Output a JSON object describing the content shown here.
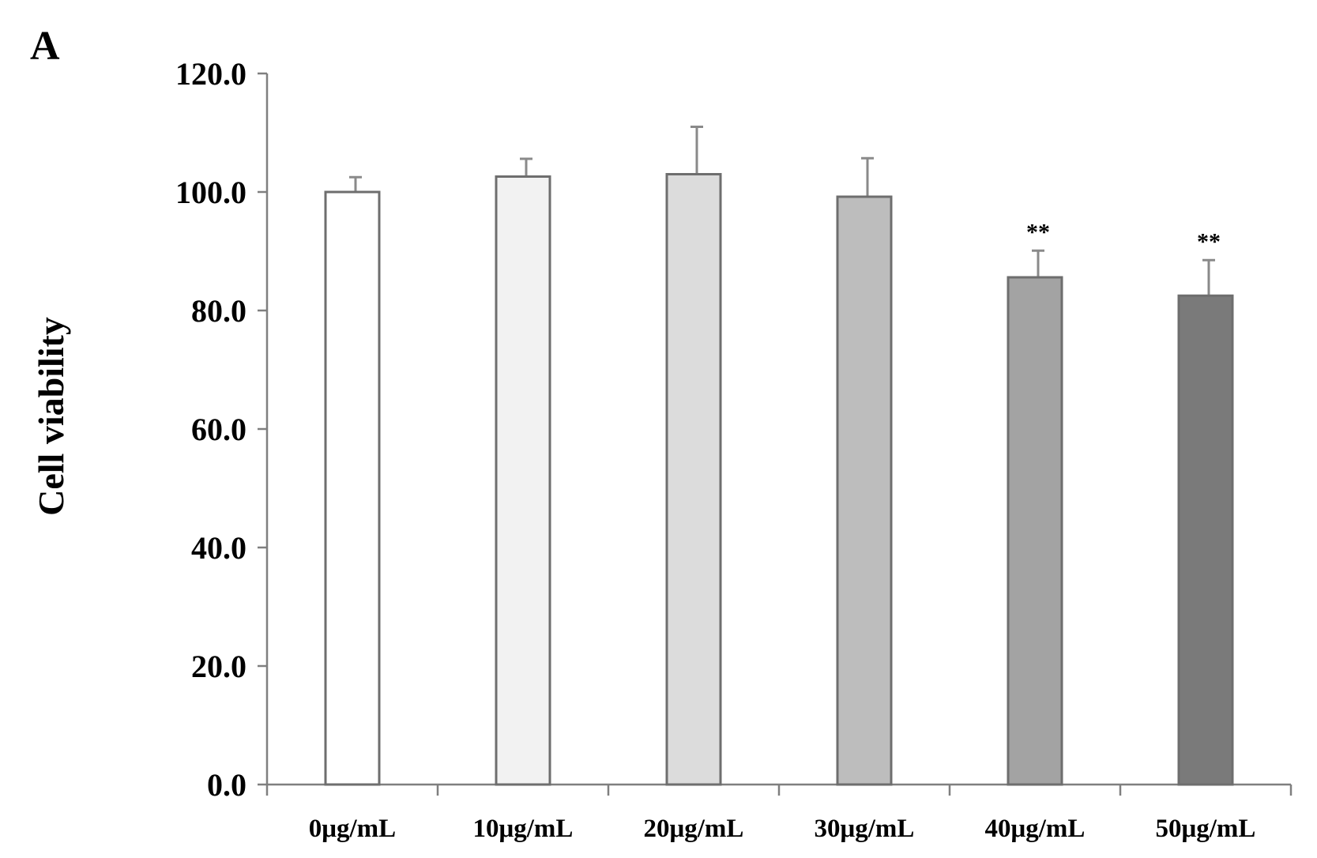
{
  "panel_label": "A",
  "chart_data": {
    "type": "bar",
    "title": "",
    "xlabel": "",
    "ylabel": "Cell viability",
    "ylim": [
      0,
      120
    ],
    "y_ticks": [
      "0.0",
      "20.0",
      "40.0",
      "60.0",
      "80.0",
      "100.0",
      "120.0"
    ],
    "grid": false,
    "categories": [
      "0μg/mL",
      "10μg/mL",
      "20μg/mL",
      "30μg/mL",
      "40μg/mL",
      "50μg/mL"
    ],
    "values": [
      100.0,
      102.6,
      103.0,
      99.2,
      85.6,
      82.5
    ],
    "errors": [
      2.5,
      3.0,
      8.0,
      6.5,
      4.5,
      6.0
    ],
    "significance": [
      "",
      "",
      "",
      "",
      "**",
      "**"
    ],
    "bar_colors": [
      "#ffffff",
      "#f2f2f2",
      "#dcdcdc",
      "#bdbdbd",
      "#a3a3a3",
      "#7a7a7a"
    ]
  }
}
